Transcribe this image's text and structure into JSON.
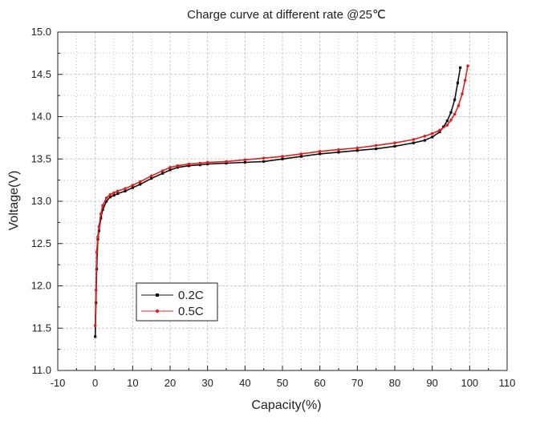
{
  "chart_data": {
    "type": "line",
    "title": "Charge curve at different rate @25℃",
    "xlabel": "Capacity(%)",
    "ylabel": "Voltage(V)",
    "xlim": [
      -10,
      110
    ],
    "ylim": [
      11.0,
      15.0
    ],
    "x_ticks": [
      "-10",
      "0",
      "10",
      "20",
      "30",
      "40",
      "50",
      "60",
      "70",
      "80",
      "90",
      "100",
      "110"
    ],
    "y_ticks": [
      "11.0",
      "11.5",
      "12.0",
      "12.5",
      "13.0",
      "13.5",
      "14.0",
      "14.5",
      "15.0"
    ],
    "grid": true,
    "legend_position": "lower-left",
    "series": [
      {
        "name": "0.2C",
        "color": "#111111",
        "marker": "square",
        "x": [
          0.0,
          0.2,
          0.4,
          0.7,
          1.0,
          1.5,
          2.0,
          3.0,
          4.0,
          5.0,
          6.0,
          8.0,
          10.0,
          12.0,
          15.0,
          18.0,
          20.0,
          22.0,
          25.0,
          28.0,
          30.0,
          35.0,
          40.0,
          45.0,
          50.0,
          55.0,
          60.0,
          65.0,
          70.0,
          75.0,
          80.0,
          85.0,
          88.0,
          90.0,
          92.0,
          93.0,
          94.0,
          95.0,
          96.0,
          96.8,
          97.5
        ],
        "y": [
          11.4,
          11.8,
          12.2,
          12.55,
          12.65,
          12.8,
          12.9,
          13.0,
          13.05,
          13.07,
          13.09,
          13.12,
          13.16,
          13.2,
          13.27,
          13.33,
          13.37,
          13.4,
          13.42,
          13.43,
          13.44,
          13.45,
          13.46,
          13.47,
          13.5,
          13.53,
          13.56,
          13.58,
          13.6,
          13.62,
          13.65,
          13.69,
          13.72,
          13.76,
          13.82,
          13.88,
          13.95,
          14.05,
          14.2,
          14.4,
          14.58
        ]
      },
      {
        "name": "0.5C",
        "color": "#e02020",
        "marker": "dot",
        "x": [
          0.0,
          0.2,
          0.4,
          0.7,
          1.0,
          1.5,
          2.0,
          3.0,
          4.0,
          5.0,
          6.0,
          8.0,
          10.0,
          12.0,
          15.0,
          18.0,
          20.0,
          22.0,
          25.0,
          28.0,
          30.0,
          35.0,
          40.0,
          45.0,
          50.0,
          55.0,
          60.0,
          65.0,
          70.0,
          75.0,
          80.0,
          85.0,
          88.0,
          90.0,
          92.0,
          94.0,
          95.0,
          96.0,
          97.0,
          98.0,
          98.8,
          99.5
        ],
        "y": [
          11.53,
          11.95,
          12.4,
          12.58,
          12.7,
          12.85,
          12.95,
          13.04,
          13.08,
          13.1,
          13.12,
          13.15,
          13.19,
          13.23,
          13.3,
          13.36,
          13.4,
          13.42,
          13.44,
          13.45,
          13.46,
          13.47,
          13.49,
          13.51,
          13.53,
          13.56,
          13.59,
          13.61,
          13.63,
          13.66,
          13.69,
          13.73,
          13.77,
          13.8,
          13.84,
          13.9,
          13.96,
          14.03,
          14.13,
          14.27,
          14.43,
          14.6
        ]
      }
    ]
  }
}
